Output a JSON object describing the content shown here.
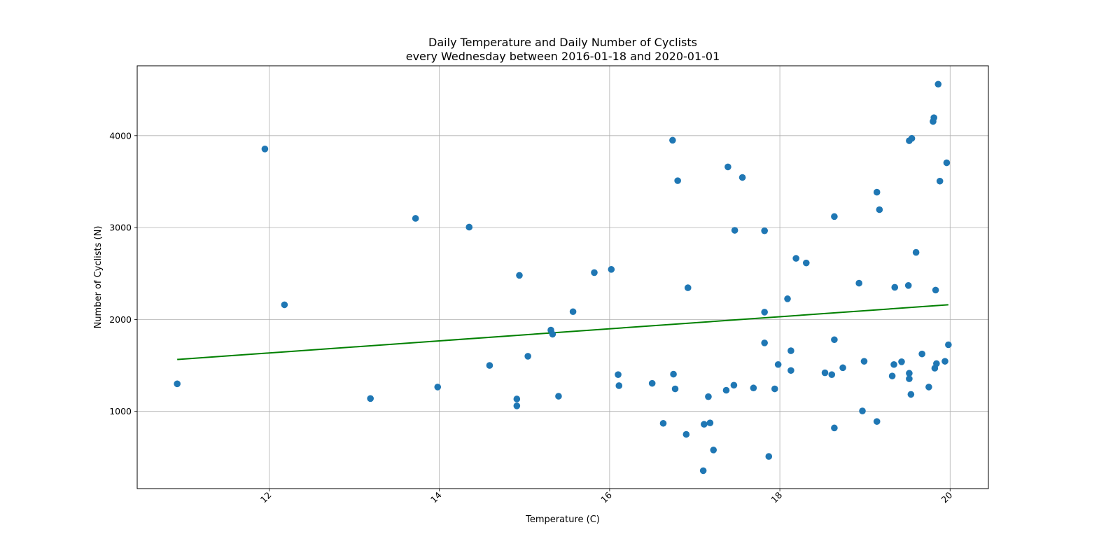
{
  "chart_data": {
    "type": "scatter",
    "title": [
      "Daily Temperature and Daily Number of Cyclists",
      "every Wednesday between 2016-01-18 and 2020-01-01"
    ],
    "xlabel": "Temperature (C)",
    "ylabel": "Number of Cyclists (N)",
    "xlim": [
      10.45,
      20.45
    ],
    "ylim": [
      160,
      4760
    ],
    "xticks": [
      12,
      14,
      16,
      18,
      20
    ],
    "yticks": [
      1000,
      2000,
      3000,
      4000
    ],
    "grid": true,
    "colors": {
      "points": "#1f77b4",
      "fit_line": "#008000"
    },
    "points": [
      [
        10.92,
        1300
      ],
      [
        11.95,
        3855
      ],
      [
        12.18,
        2160
      ],
      [
        13.19,
        1140
      ],
      [
        13.72,
        3100
      ],
      [
        13.98,
        1265
      ],
      [
        14.35,
        3005
      ],
      [
        14.59,
        1500
      ],
      [
        14.91,
        1135
      ],
      [
        14.91,
        1060
      ],
      [
        14.94,
        2480
      ],
      [
        15.04,
        1600
      ],
      [
        15.31,
        1885
      ],
      [
        15.33,
        1840
      ],
      [
        15.4,
        1165
      ],
      [
        15.57,
        2085
      ],
      [
        15.82,
        2510
      ],
      [
        16.02,
        2545
      ],
      [
        16.1,
        1400
      ],
      [
        16.11,
        1280
      ],
      [
        16.5,
        1305
      ],
      [
        16.63,
        870
      ],
      [
        16.74,
        3950
      ],
      [
        16.75,
        1405
      ],
      [
        16.77,
        1245
      ],
      [
        16.8,
        3510
      ],
      [
        16.9,
        750
      ],
      [
        16.92,
        2345
      ],
      [
        17.1,
        355
      ],
      [
        17.11,
        860
      ],
      [
        17.16,
        1160
      ],
      [
        17.18,
        875
      ],
      [
        17.22,
        580
      ],
      [
        17.37,
        1230
      ],
      [
        17.39,
        3660
      ],
      [
        17.46,
        1285
      ],
      [
        17.47,
        2970
      ],
      [
        17.56,
        3545
      ],
      [
        17.69,
        1255
      ],
      [
        17.82,
        2965
      ],
      [
        17.82,
        1745
      ],
      [
        17.82,
        2080
      ],
      [
        17.87,
        510
      ],
      [
        17.94,
        1245
      ],
      [
        17.98,
        1510
      ],
      [
        18.09,
        2225
      ],
      [
        18.13,
        1660
      ],
      [
        18.13,
        1445
      ],
      [
        18.19,
        2665
      ],
      [
        18.31,
        2615
      ],
      [
        18.53,
        1420
      ],
      [
        18.61,
        1400
      ],
      [
        18.64,
        3120
      ],
      [
        18.64,
        1780
      ],
      [
        18.64,
        820
      ],
      [
        18.74,
        1475
      ],
      [
        18.93,
        2395
      ],
      [
        18.97,
        1005
      ],
      [
        18.99,
        1545
      ],
      [
        19.14,
        3385
      ],
      [
        19.14,
        890
      ],
      [
        19.17,
        3195
      ],
      [
        19.32,
        1385
      ],
      [
        19.34,
        1510
      ],
      [
        19.35,
        2350
      ],
      [
        19.43,
        1540
      ],
      [
        19.51,
        2370
      ],
      [
        19.52,
        1415
      ],
      [
        19.52,
        1355
      ],
      [
        19.52,
        3945
      ],
      [
        19.54,
        1185
      ],
      [
        19.55,
        3970
      ],
      [
        19.6,
        2730
      ],
      [
        19.67,
        1625
      ],
      [
        19.75,
        1265
      ],
      [
        19.8,
        4155
      ],
      [
        19.81,
        4195
      ],
      [
        19.82,
        1470
      ],
      [
        19.83,
        2320
      ],
      [
        19.84,
        1520
      ],
      [
        19.86,
        4560
      ],
      [
        19.88,
        3505
      ],
      [
        19.94,
        1545
      ],
      [
        19.96,
        3705
      ],
      [
        19.98,
        1725
      ]
    ],
    "fit_line": {
      "x": [
        10.92,
        19.98
      ],
      "y": [
        1565,
        2160
      ]
    }
  }
}
